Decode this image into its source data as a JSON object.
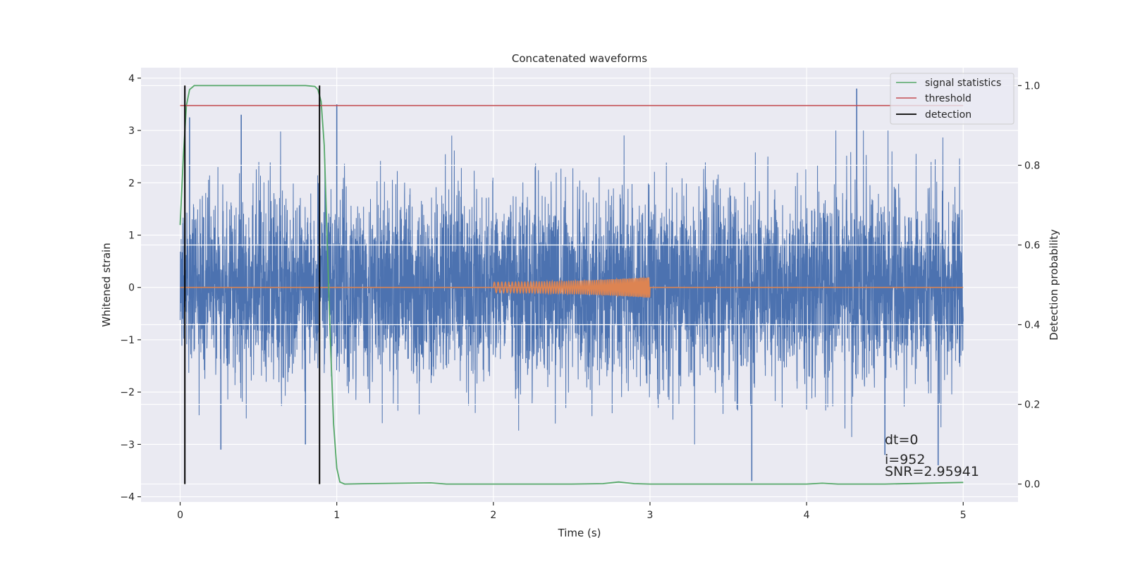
{
  "chart_data": {
    "type": "line",
    "title": "Concatenated waveforms",
    "xlabel": "Time (s)",
    "ylabel": "Whitened strain",
    "ylabel_right": "Detection probability",
    "xlim": [
      -0.25,
      5.35
    ],
    "ylim": [
      -4.1,
      4.2
    ],
    "ylim_right": [
      -0.045,
      1.045
    ],
    "x_ticks": [
      0,
      1,
      2,
      3,
      4,
      5
    ],
    "y_ticks": [
      -4,
      -3,
      -2,
      -1,
      0,
      1,
      2,
      3,
      4
    ],
    "y_ticks_right": [
      0.0,
      0.2,
      0.4,
      0.6,
      0.8,
      1.0
    ],
    "grid": true,
    "legend_position": "top-right",
    "colors": {
      "strain": "#4c72b0",
      "injected_waveform": "#dd8452",
      "signal_statistics": "#55a868",
      "threshold": "#c44e52",
      "detection": "#000000",
      "background": "#eaeaf2"
    },
    "series": [
      {
        "name": "",
        "role": "whitened-strain",
        "axis": "left",
        "x_range": [
          0,
          5
        ],
        "typical_amplitude": 1.0,
        "peak_values": [
          {
            "x": 0.06,
            "y": 3.25
          },
          {
            "x": 0.39,
            "y": 3.3
          },
          {
            "x": 1.0,
            "y": 3.5
          },
          {
            "x": 4.32,
            "y": 3.8
          },
          {
            "x": 3.65,
            "y": -3.7
          },
          {
            "x": 0.26,
            "y": -3.1
          },
          {
            "x": 0.8,
            "y": -3.0
          },
          {
            "x": 4.5,
            "y": -3.2
          },
          {
            "x": 4.84,
            "y": -3.4
          }
        ]
      },
      {
        "name": "",
        "role": "injected-waveform",
        "axis": "left",
        "x_range": [
          0,
          5
        ],
        "chirp_start": 2.0,
        "chirp_end": 3.0,
        "amplitude_start": 0.1,
        "amplitude_end": 0.2
      },
      {
        "name": "signal statistics",
        "axis": "right",
        "x": [
          0.0,
          0.02,
          0.04,
          0.06,
          0.09,
          0.12,
          0.2,
          0.5,
          0.8,
          0.86,
          0.88,
          0.9,
          0.92,
          0.94,
          0.96,
          0.98,
          1.0,
          1.02,
          1.05,
          1.2,
          1.6,
          1.7,
          2.0,
          2.5,
          2.7,
          2.8,
          2.9,
          3.0,
          3.5,
          4.0,
          4.1,
          4.2,
          4.5,
          5.0
        ],
        "y": [
          0.65,
          0.82,
          0.95,
          0.99,
          1.0,
          1.0,
          1.0,
          1.0,
          1.0,
          0.998,
          0.99,
          0.96,
          0.85,
          0.6,
          0.35,
          0.15,
          0.04,
          0.005,
          0.0,
          0.001,
          0.003,
          0.0,
          0.0,
          0.0,
          0.001,
          0.005,
          0.001,
          0.0,
          0.0,
          0.0,
          0.002,
          0.0,
          0.0,
          0.004
        ]
      },
      {
        "name": "threshold",
        "axis": "right",
        "x": [
          0,
          5
        ],
        "y": [
          0.95,
          0.95
        ]
      },
      {
        "name": "detection",
        "axis": "right",
        "x_values": [
          0.03,
          0.89
        ],
        "y_span": [
          0,
          1
        ]
      }
    ],
    "annotations": [
      "dt=0",
      "i=952",
      "SNR=2.95941"
    ]
  }
}
